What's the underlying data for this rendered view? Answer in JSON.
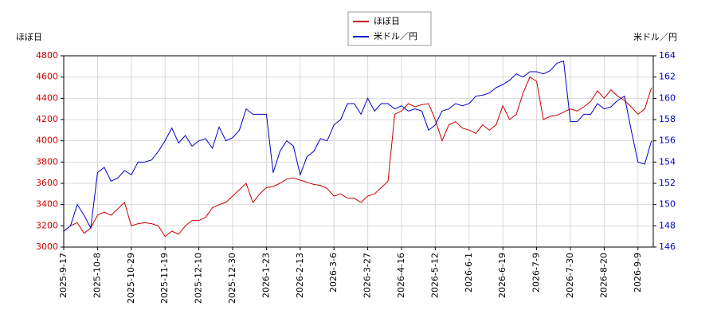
{
  "chart_data": {
    "type": "line",
    "y_label": "ほぼ日",
    "y2_label": "米ドル／円",
    "categories": [
      "2025-9-17",
      null,
      null,
      null,
      null,
      "2025-10-8",
      null,
      null,
      null,
      null,
      "2025-10-29",
      null,
      null,
      null,
      null,
      "2025-11-19",
      null,
      null,
      null,
      null,
      "2025-12-10",
      null,
      null,
      null,
      null,
      "2025-12-30",
      null,
      null,
      null,
      null,
      "2026-1-23",
      null,
      null,
      null,
      null,
      "2026-2-13",
      null,
      null,
      null,
      null,
      "2026-3-6",
      null,
      null,
      null,
      null,
      "2026-3-27",
      null,
      null,
      null,
      null,
      "2026-4-16",
      null,
      null,
      null,
      null,
      "2026-5-12",
      null,
      null,
      null,
      null,
      "2026-6-1",
      null,
      null,
      null,
      null,
      "2026-6-19",
      null,
      null,
      null,
      null,
      "2026-7-9",
      null,
      null,
      null,
      null,
      "2026-7-30",
      null,
      null,
      null,
      null,
      "2026-8-20",
      null,
      null,
      null,
      null,
      "2026-9-9",
      null,
      null
    ],
    "series": [
      {
        "name": "ほぼ日",
        "color": "#cc0000",
        "axis": "y",
        "values": [
          3150,
          3200,
          3230,
          3130,
          3180,
          3300,
          3330,
          3300,
          3360,
          3420,
          3200,
          3220,
          3230,
          3220,
          3200,
          3100,
          3150,
          3120,
          3200,
          3250,
          3250,
          3280,
          3370,
          3400,
          3420,
          3480,
          3540,
          3600,
          3420,
          3500,
          3560,
          3570,
          3600,
          3640,
          3650,
          3630,
          3610,
          3590,
          3580,
          3550,
          3480,
          3500,
          3460,
          3460,
          3420,
          3480,
          3500,
          3560,
          3620,
          4250,
          4280,
          4350,
          4320,
          4340,
          4350,
          4200,
          4000,
          4150,
          4180,
          4120,
          4100,
          4070,
          4150,
          4100,
          4150,
          4330,
          4200,
          4250,
          4450,
          4600,
          4560,
          4200,
          4230,
          4240,
          4270,
          4300,
          4280,
          4320,
          4370,
          4470,
          4400,
          4480,
          4420,
          4380,
          4320,
          4250,
          4300,
          4500
        ]
      },
      {
        "name": "米ドル／円",
        "color": "#0000cc",
        "axis": "y2",
        "values": [
          147.5,
          148.0,
          150.0,
          149.0,
          147.8,
          153.0,
          153.5,
          152.2,
          152.5,
          153.2,
          152.8,
          154.0,
          154.0,
          154.2,
          155.0,
          156.0,
          157.2,
          155.8,
          156.5,
          155.5,
          156.0,
          156.2,
          155.3,
          157.3,
          156.0,
          156.3,
          157.0,
          159.0,
          158.5,
          158.5,
          158.5,
          153.0,
          155.0,
          156.0,
          155.5,
          152.8,
          154.5,
          155.0,
          156.2,
          156.0,
          157.5,
          158.0,
          159.5,
          159.5,
          158.5,
          160.0,
          158.8,
          159.5,
          159.5,
          159.0,
          159.3,
          158.8,
          159.0,
          158.8,
          157.0,
          157.5,
          158.8,
          159.0,
          159.5,
          159.3,
          159.5,
          160.2,
          160.3,
          160.5,
          161.0,
          161.3,
          161.7,
          162.3,
          162.0,
          162.5,
          162.5,
          162.3,
          162.6,
          163.3,
          163.5,
          157.8,
          157.8,
          158.5,
          158.5,
          159.5,
          159.0,
          159.2,
          159.8,
          160.2,
          157.0,
          154.0,
          153.8,
          156.0
        ]
      }
    ],
    "ylim": [
      3000,
      4800
    ],
    "yticks": [
      3000,
      3200,
      3400,
      3600,
      3800,
      4000,
      4200,
      4400,
      4600,
      4800
    ],
    "y2lim": [
      146,
      164
    ],
    "y2ticks": [
      146,
      148,
      150,
      152,
      154,
      156,
      158,
      160,
      162,
      164
    ],
    "grid": true
  }
}
